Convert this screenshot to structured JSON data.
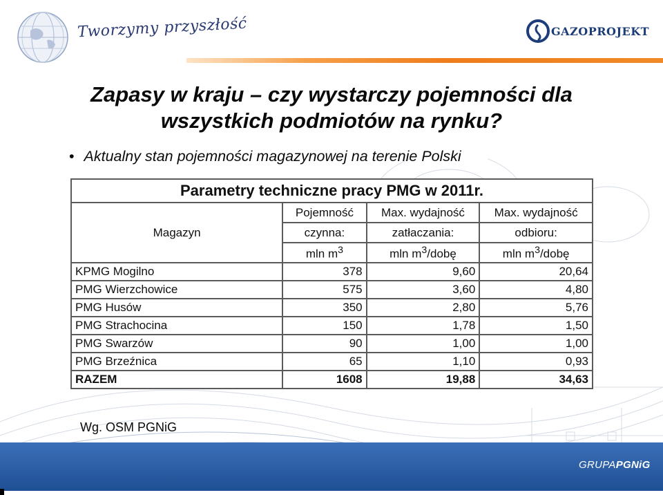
{
  "header": {
    "signature": "Tworzymy przyszłość",
    "logo_text": "GAZOPROJEKT"
  },
  "slide": {
    "title_line1": "Zapasy w kraju – czy wystarczy pojemności dla",
    "title_line2": "wszystkich podmiotów na rynku?",
    "bullet": "Aktualny stan pojemności magazynowej na terenie Polski"
  },
  "table": {
    "caption": "Parametry techniczne pracy PMG w 2011r.",
    "col_magazyn": "Magazyn",
    "col2_l1": "Pojemność",
    "col2_l2": "czynna:",
    "col2_unit": "mln m",
    "col3_l1": "Max. wydajność",
    "col3_l2": "zatłaczania:",
    "col3_unit": "mln m",
    "col3_unit_tail": "/dobę",
    "col4_l1": "Max. wydajność",
    "col4_l2": "odbioru:",
    "col4_unit": "mln m",
    "col4_unit_tail": "/dobę",
    "sup": "3",
    "rows": [
      {
        "name": "KPMG Mogilno",
        "cap": "378",
        "inj": "9,60",
        "wd": "20,64"
      },
      {
        "name": "PMG Wierzchowice",
        "cap": "575",
        "inj": "3,60",
        "wd": "4,80"
      },
      {
        "name": "PMG Husów",
        "cap": "350",
        "inj": "2,80",
        "wd": "5,76"
      },
      {
        "name": "PMG Strachocina",
        "cap": "150",
        "inj": "1,78",
        "wd": "1,50"
      },
      {
        "name": "PMG Swarzów",
        "cap": "90",
        "inj": "1,00",
        "wd": "1,00"
      },
      {
        "name": "PMG Brzeźnica",
        "cap": "65",
        "inj": "1,10",
        "wd": "0,93"
      }
    ],
    "total": {
      "name": "RAZEM",
      "cap": "1608",
      "inj": "19,88",
      "wd": "34,63"
    }
  },
  "source": "Wg. OSM PGNiG",
  "footer": {
    "grupa": "GRUPA",
    "pgnig": "PGNiG"
  },
  "colors": {
    "accent_orange": "#ef7d1b",
    "band_blue": "#1f4f95",
    "logo_blue": "#1c3d7a"
  }
}
